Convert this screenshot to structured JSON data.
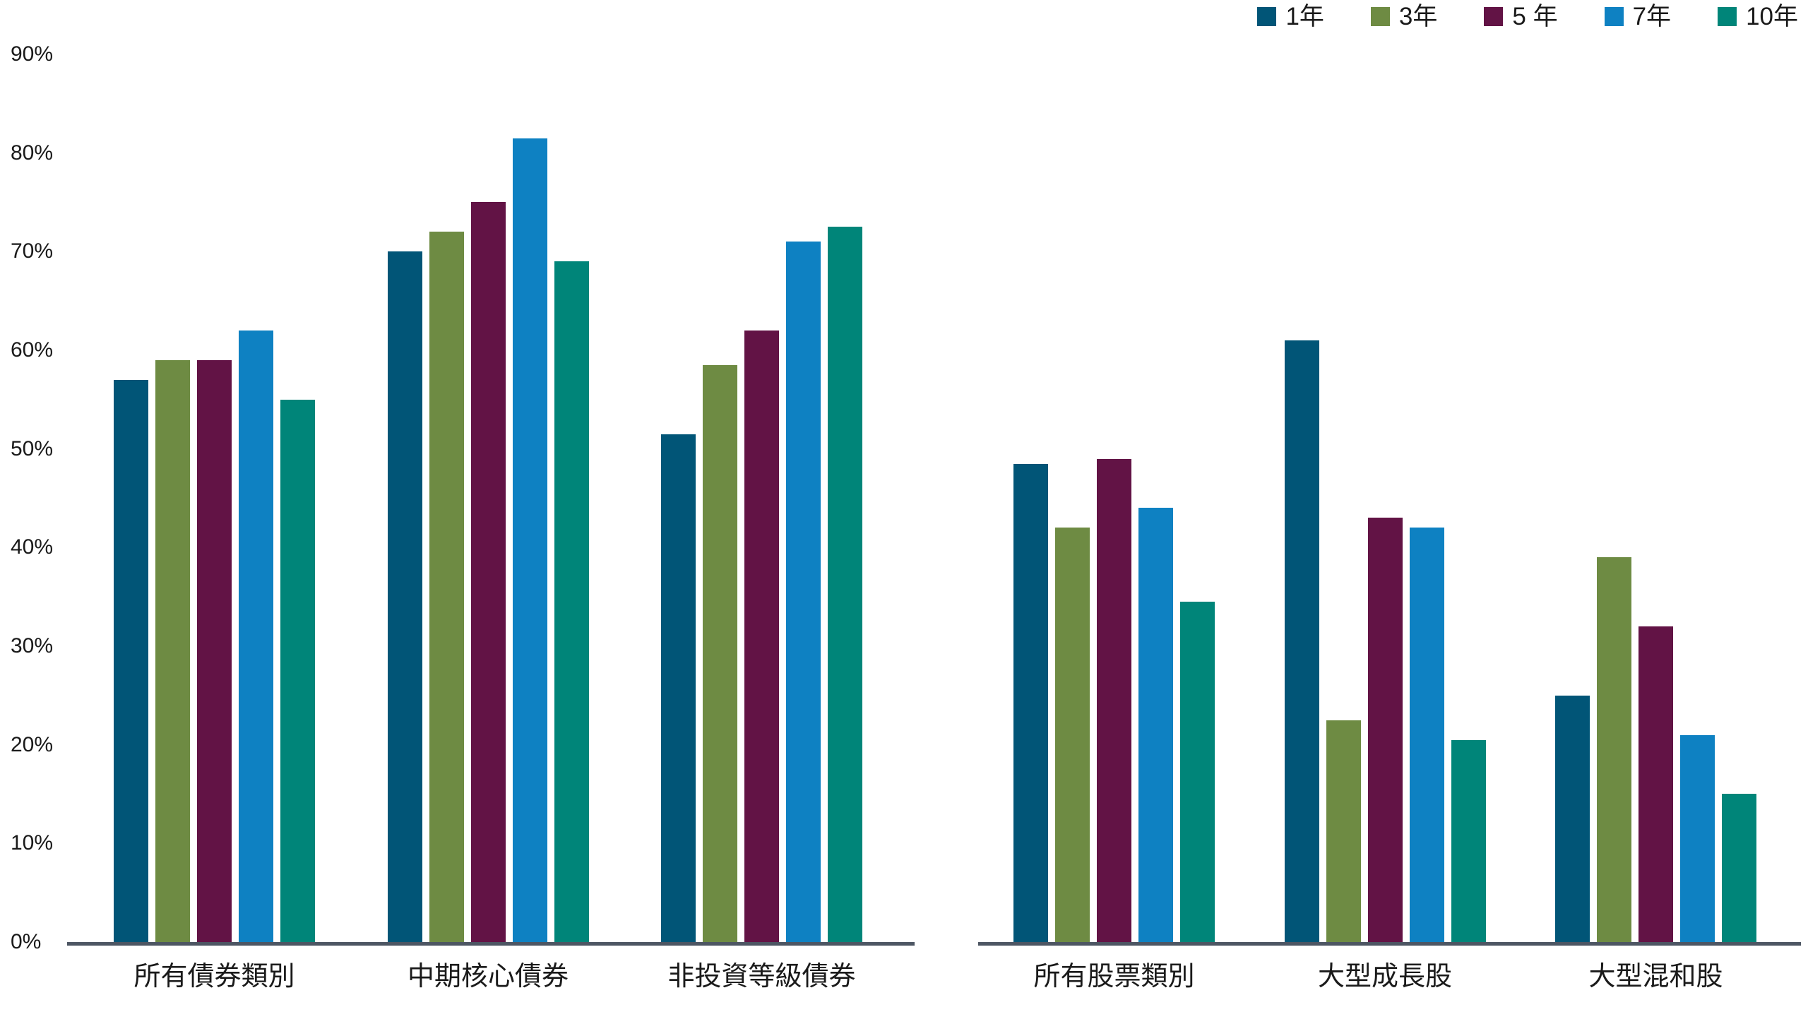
{
  "colors": {
    "axis_line": "#4d5663",
    "text": "#1a1a1a",
    "background": "#ffffff"
  },
  "legend": {
    "items": [
      {
        "label": "1年",
        "color": "#015577"
      },
      {
        "label": "3年",
        "color": "#6e8b43"
      },
      {
        "label": "5 年",
        "color": "#621345"
      },
      {
        "label": "7年",
        "color": "#0e81c2"
      },
      {
        "label": "10年",
        "color": "#008579"
      }
    ]
  },
  "chart_data": {
    "type": "bar",
    "title": "",
    "xlabel": "",
    "ylabel": "",
    "ylim": [
      0,
      90
    ],
    "yticks": [
      0,
      10,
      20,
      30,
      40,
      50,
      60,
      70,
      80,
      90
    ],
    "ytick_suffix": "%",
    "grid": false,
    "legend_position": "top-right",
    "series": [
      {
        "name": "1年",
        "color": "#015577"
      },
      {
        "name": "3年",
        "color": "#6e8b43"
      },
      {
        "name": "5 年",
        "color": "#621345"
      },
      {
        "name": "7年",
        "color": "#0e81c2"
      },
      {
        "name": "10年",
        "color": "#008579"
      }
    ],
    "panels": [
      {
        "name": "bonds",
        "categories": [
          "所有債券類別",
          "中期核心債券",
          "非投資等級債券"
        ],
        "series": [
          {
            "name": "1年",
            "values": [
              57,
              70,
              51.5
            ]
          },
          {
            "name": "3年",
            "values": [
              59,
              72,
              58.5
            ]
          },
          {
            "name": "5 年",
            "values": [
              59,
              75,
              62
            ]
          },
          {
            "name": "7年",
            "values": [
              62,
              81.5,
              71
            ]
          },
          {
            "name": "10年",
            "values": [
              55,
              69,
              72.5
            ]
          }
        ]
      },
      {
        "name": "stocks",
        "categories": [
          "所有股票類別",
          "大型成長股",
          "大型混和股"
        ],
        "series": [
          {
            "name": "1年",
            "values": [
              48.5,
              61,
              25
            ]
          },
          {
            "name": "3年",
            "values": [
              42,
              22.5,
              39
            ]
          },
          {
            "name": "5 年",
            "values": [
              49,
              43,
              32
            ]
          },
          {
            "name": "7年",
            "values": [
              44,
              42,
              21
            ]
          },
          {
            "name": "10年",
            "values": [
              34.5,
              20.5,
              15
            ]
          }
        ]
      }
    ]
  }
}
